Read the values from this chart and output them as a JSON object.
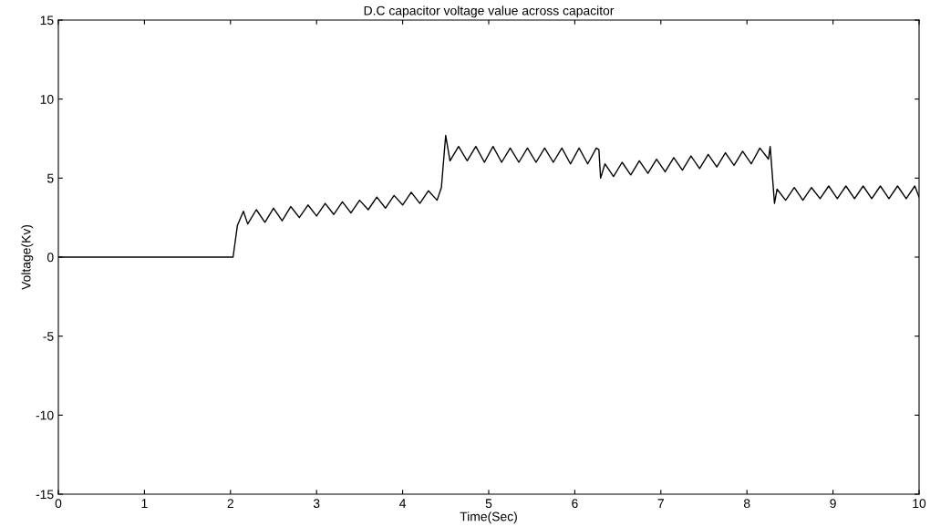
{
  "chart_data": {
    "type": "line",
    "title": "D.C capacitor voltage value across capacitor",
    "xlabel": "Time(Sec)",
    "ylabel": "Voltage(Kv)",
    "xlim": [
      0,
      10
    ],
    "ylim": [
      -15,
      15
    ],
    "xticks": [
      0,
      1,
      2,
      3,
      4,
      5,
      6,
      7,
      8,
      9,
      10
    ],
    "yticks": [
      -15,
      -10,
      -5,
      0,
      5,
      10,
      15
    ],
    "grid": false,
    "marker": "none",
    "line_style": "solid",
    "series": [
      {
        "color": "#000000",
        "x": [
          0,
          2.03,
          2.08,
          2.15,
          2.2,
          2.3,
          2.4,
          2.5,
          2.6,
          2.7,
          2.8,
          2.9,
          3.0,
          3.1,
          3.2,
          3.3,
          3.4,
          3.5,
          3.6,
          3.7,
          3.8,
          3.9,
          4.0,
          4.1,
          4.2,
          4.3,
          4.4,
          4.45,
          4.5,
          4.55,
          4.65,
          4.75,
          4.85,
          4.95,
          5.05,
          5.15,
          5.25,
          5.35,
          5.45,
          5.55,
          5.65,
          5.75,
          5.85,
          5.95,
          6.05,
          6.15,
          6.25,
          6.28,
          6.3,
          6.35,
          6.45,
          6.55,
          6.65,
          6.75,
          6.85,
          6.95,
          7.05,
          7.15,
          7.25,
          7.35,
          7.45,
          7.55,
          7.65,
          7.75,
          7.85,
          7.95,
          8.05,
          8.15,
          8.25,
          8.27,
          8.32,
          8.35,
          8.45,
          8.55,
          8.65,
          8.75,
          8.85,
          8.95,
          9.05,
          9.15,
          9.25,
          9.35,
          9.45,
          9.55,
          9.65,
          9.75,
          9.85,
          9.95,
          10
        ],
        "values": [
          0,
          0,
          2.0,
          2.9,
          2.1,
          3.0,
          2.2,
          3.1,
          2.3,
          3.2,
          2.5,
          3.3,
          2.6,
          3.4,
          2.7,
          3.5,
          2.8,
          3.6,
          3.0,
          3.8,
          3.1,
          3.9,
          3.3,
          4.1,
          3.4,
          4.2,
          3.6,
          4.4,
          7.7,
          6.1,
          7.0,
          6.1,
          7.0,
          6.0,
          7.0,
          6.0,
          6.9,
          6.0,
          6.9,
          6.0,
          6.9,
          6.0,
          6.9,
          5.9,
          6.9,
          5.9,
          6.9,
          6.8,
          5.0,
          5.9,
          5.1,
          6.0,
          5.2,
          6.1,
          5.3,
          6.2,
          5.4,
          6.3,
          5.5,
          6.4,
          5.6,
          6.5,
          5.7,
          6.6,
          5.8,
          6.7,
          5.9,
          6.9,
          6.2,
          7.0,
          3.4,
          4.3,
          3.6,
          4.4,
          3.6,
          4.4,
          3.7,
          4.5,
          3.7,
          4.5,
          3.7,
          4.5,
          3.7,
          4.5,
          3.7,
          4.5,
          3.7,
          4.5,
          3.8
        ]
      }
    ]
  }
}
